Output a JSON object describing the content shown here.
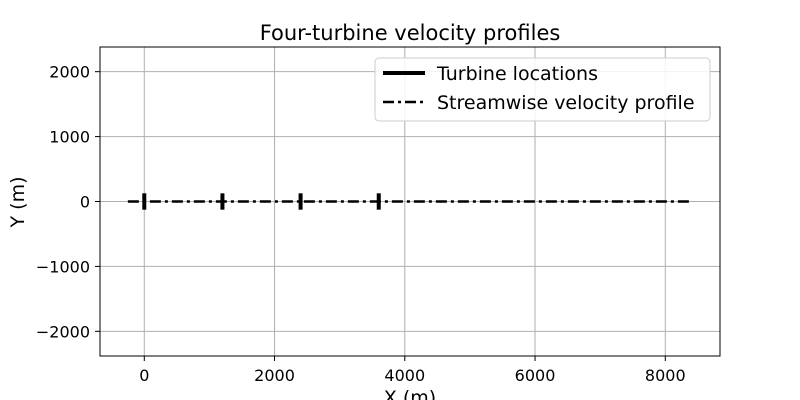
{
  "chart_data": {
    "type": "line",
    "title": "Four-turbine velocity profiles",
    "xlabel": "X (m)",
    "ylabel": "Y (m)",
    "xlim": [
      -680,
      8840
    ],
    "ylim": [
      -2380,
      2380
    ],
    "xticks": [
      0,
      2000,
      4000,
      6000,
      8000
    ],
    "yticks": [
      -2000,
      -1000,
      0,
      1000,
      2000
    ],
    "xtick_labels": [
      "0",
      "2000",
      "4000",
      "6000",
      "8000"
    ],
    "ytick_labels": [
      "−2000",
      "−1000",
      "0",
      "1000",
      "2000"
    ],
    "grid": true,
    "legend_placement": "top-right",
    "series": [
      {
        "name": "Turbine locations",
        "line_style": "solid",
        "color": "#000000",
        "segments": [
          {
            "x": [
              0,
              0
            ],
            "y": [
              -126,
              126
            ]
          },
          {
            "x": [
              1200,
              1200
            ],
            "y": [
              -126,
              126
            ]
          },
          {
            "x": [
              2400,
              2400
            ],
            "y": [
              -126,
              126
            ]
          },
          {
            "x": [
              3600,
              3600
            ],
            "y": [
              -126,
              126
            ]
          }
        ]
      },
      {
        "name": "Streamwise velocity profile",
        "line_style": "dashdot",
        "color": "#000000",
        "x": [
          -252,
          8400
        ],
        "y": [
          0,
          0
        ]
      }
    ]
  }
}
